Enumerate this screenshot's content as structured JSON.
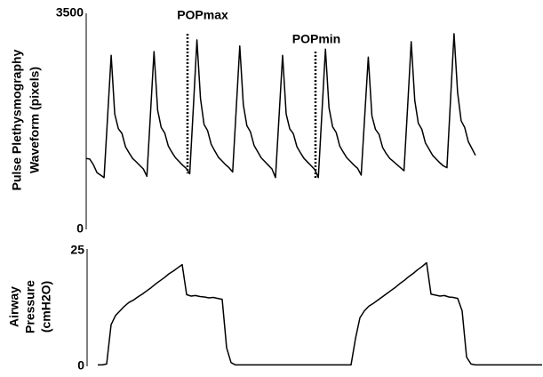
{
  "chart_data": [
    {
      "type": "line",
      "y_label": [
        "Pulse Plethysmography",
        "Waveform (pixels)"
      ],
      "color": "#000000",
      "ylim": [
        0,
        3500
      ],
      "yticks": [
        0,
        3500
      ],
      "grid": false,
      "annotations": [
        "POPmax",
        "POPmin"
      ],
      "values": [
        1150,
        1140,
        1050,
        920,
        880,
        840,
        1830,
        2820,
        1870,
        1630,
        1555,
        1340,
        1240,
        1150,
        1095,
        1035,
        980,
        860,
        1870,
        2880,
        1930,
        1650,
        1560,
        1350,
        1250,
        1160,
        1100,
        1040,
        990,
        900,
        1985,
        3070,
        2120,
        1700,
        1600,
        1380,
        1270,
        1170,
        1110,
        1050,
        1000,
        930,
        1950,
        2970,
        2020,
        1680,
        1580,
        1360,
        1260,
        1160,
        1100,
        1040,
        980,
        840,
        1830,
        2820,
        1870,
        1630,
        1550,
        1340,
        1240,
        1150,
        1090,
        1030,
        970,
        840,
        1880,
        2920,
        1970,
        1660,
        1570,
        1350,
        1250,
        1160,
        1100,
        1040,
        990,
        880,
        1835,
        2790,
        1840,
        1620,
        1540,
        1330,
        1230,
        1150,
        1100,
        1050,
        1000,
        950,
        1995,
        3040,
        2090,
        1720,
        1620,
        1400,
        1300,
        1200,
        1140,
        1080,
        1030,
        1000,
        2085,
        3170,
        2220,
        1760,
        1650,
        1420,
        1310,
        1200
      ]
    },
    {
      "type": "line",
      "y_label": [
        "Airway",
        "Pressure",
        "(cmH2O)"
      ],
      "color": "#000000",
      "ylim": [
        0,
        25
      ],
      "yticks": [
        0,
        25
      ],
      "grid": false,
      "values": [
        0.3,
        0.3,
        0.5,
        9,
        11,
        12,
        13,
        13.8,
        14.3,
        15,
        15.6,
        16.3,
        17,
        17.8,
        18.5,
        19.2,
        20,
        20.6,
        21.3,
        22,
        15.5,
        15.2,
        15.3,
        15.1,
        15,
        14.8,
        14.9,
        14.7,
        14.5,
        4,
        0.8,
        0.3,
        0.3,
        0.3,
        0.3,
        0.3,
        0.3,
        0.3,
        0.3,
        0.3,
        0.3,
        0.3,
        0.3,
        0.3,
        0.3,
        0.3,
        0.3,
        0.3,
        0.3,
        0.3,
        0.3,
        0.3,
        0.3,
        0.3,
        0.3,
        0.3,
        0.3,
        0.3,
        6,
        10.5,
        12,
        13,
        13.6,
        14.3,
        15,
        15.7,
        16.4,
        17.1,
        17.9,
        18.6,
        19.4,
        20.1,
        20.9,
        21.6,
        22.4,
        15.6,
        15.4,
        15.2,
        15.3,
        15,
        14.9,
        14.7,
        12,
        2,
        0.5,
        0.3,
        0.3,
        0.3,
        0.3,
        0.3,
        0.3,
        0.3,
        0.3,
        0.3,
        0.3,
        0.3,
        0.3,
        0.3,
        0.3,
        0.3,
        0.3
      ]
    }
  ]
}
